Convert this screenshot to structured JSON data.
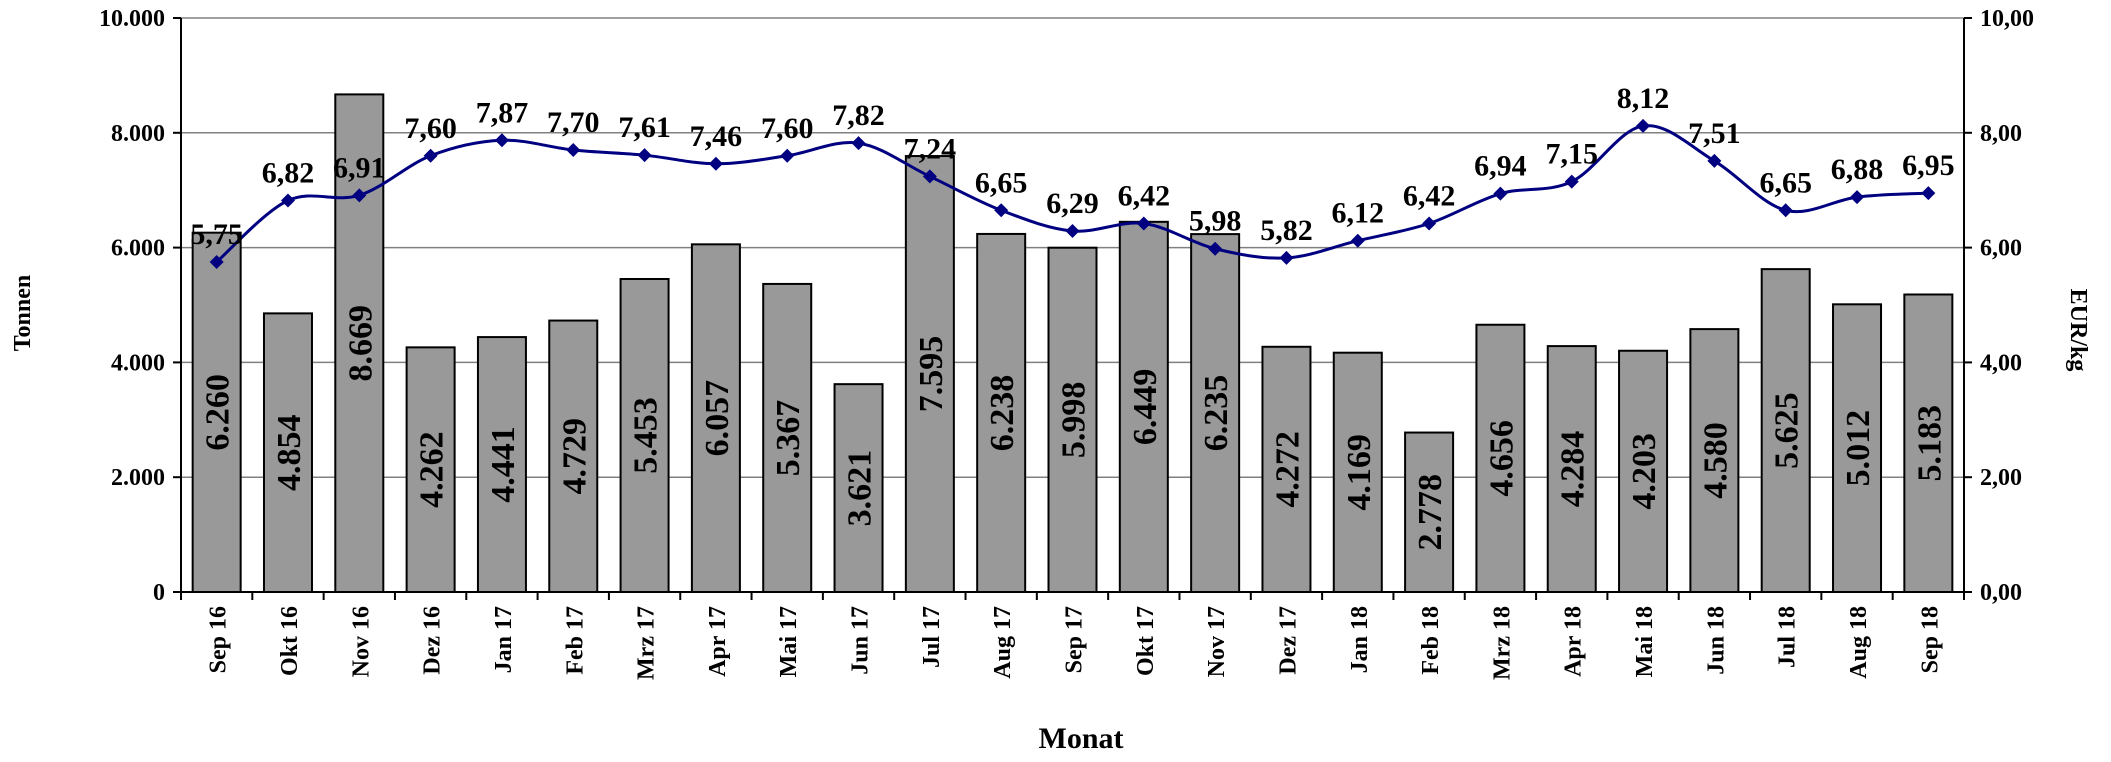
{
  "chart_data": {
    "type": "bar",
    "categories": [
      "Sep 16",
      "Okt 16",
      "Nov 16",
      "Dez 16",
      "Jan 17",
      "Feb 17",
      "Mrz 17",
      "Apr 17",
      "Mai 17",
      "Jun 17",
      "Jul 17",
      "Aug 17",
      "Sep 17",
      "Okt 17",
      "Nov 17",
      "Dez 17",
      "Jan 18",
      "Feb 18",
      "Mrz 18",
      "Apr 18",
      "Mai 18",
      "Jun 18",
      "Jul 18",
      "Aug 18",
      "Sep 18"
    ],
    "series": [
      {
        "type": "bar",
        "axis": "left",
        "values": [
          6260,
          4854,
          8669,
          4262,
          4441,
          4729,
          5453,
          6057,
          5367,
          3621,
          7595,
          6238,
          5998,
          6449,
          6235,
          4272,
          4169,
          2778,
          4656,
          4284,
          4203,
          4580,
          5625,
          5012,
          5183
        ],
        "labels": [
          "6.260",
          "4.854",
          "8.669",
          "4.262",
          "4.441",
          "4.729",
          "5.453",
          "6.057",
          "5.367",
          "3.621",
          "7.595",
          "6.238",
          "5.998",
          "6.449",
          "6.235",
          "4.272",
          "4.169",
          "2.778",
          "4.656",
          "4.284",
          "4.203",
          "4.580",
          "5.625",
          "5.012",
          "5.183"
        ],
        "color": "#999999"
      },
      {
        "type": "line",
        "axis": "right",
        "values": [
          5.75,
          6.82,
          6.91,
          7.6,
          7.87,
          7.7,
          7.61,
          7.46,
          7.6,
          7.82,
          7.24,
          6.65,
          6.29,
          6.42,
          5.98,
          5.82,
          6.12,
          6.42,
          6.94,
          7.15,
          8.12,
          7.51,
          6.65,
          6.88,
          6.95
        ],
        "labels": [
          "5,75",
          "6,82",
          "6,91",
          "7,60",
          "7,87",
          "7,70",
          "7,61",
          "7,46",
          "7,60",
          "7,82",
          "7,24",
          "6,65",
          "6,29",
          "6,42",
          "5,98",
          "5,82",
          "6,12",
          "6,42",
          "6,94",
          "7,15",
          "8,12",
          "7,51",
          "6,65",
          "6,88",
          "6,95"
        ],
        "color": "#000080"
      }
    ],
    "xlabel": "Monat",
    "ylabel_left": "Tonnen",
    "ylabel_right": "EUR/kg",
    "ylim_left": [
      0,
      10000
    ],
    "ylim_right": [
      0,
      10
    ],
    "yticks_left": [
      "0",
      "2.000",
      "4.000",
      "6.000",
      "8.000",
      "10.000"
    ],
    "yticks_right": [
      "0,00",
      "2,00",
      "4,00",
      "6,00",
      "8,00",
      "10,00"
    ],
    "grid": true
  }
}
